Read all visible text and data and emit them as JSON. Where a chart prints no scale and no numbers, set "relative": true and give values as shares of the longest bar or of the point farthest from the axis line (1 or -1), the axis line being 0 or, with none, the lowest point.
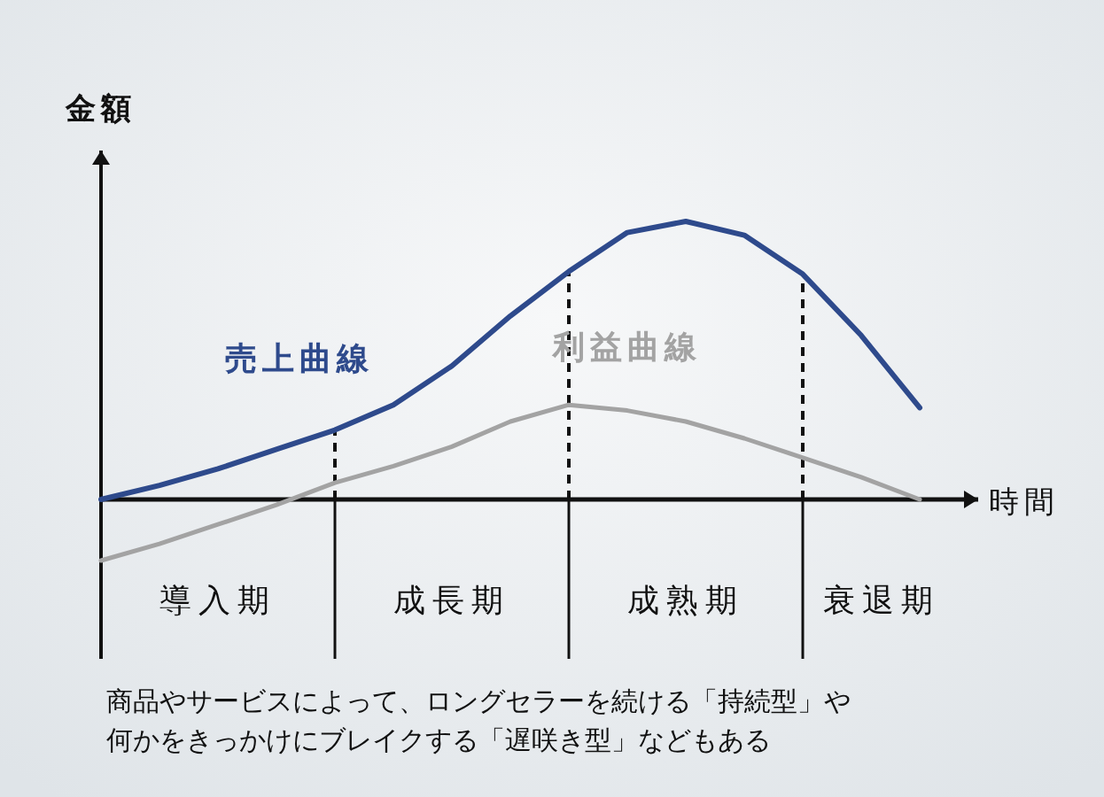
{
  "chart_data": {
    "type": "line",
    "relative": true,
    "ylabel": "金額",
    "xlabel": "時間",
    "categories": [
      null,
      null,
      null,
      null,
      null,
      null,
      null,
      null,
      null,
      null,
      null,
      null,
      null,
      null,
      null,
      null
    ],
    "series": [
      {
        "name": "売上曲線",
        "color": "#2e4a8c",
        "values": [
          0,
          0.05,
          0.11,
          0.18,
          0.25,
          0.34,
          0.48,
          0.66,
          0.82,
          0.96,
          1.0,
          0.95,
          0.81,
          0.59,
          0.33,
          null
        ]
      },
      {
        "name": "利益曲線",
        "color": "#a3a3a3",
        "values": [
          -0.22,
          -0.16,
          -0.09,
          -0.02,
          0.06,
          0.12,
          0.19,
          0.28,
          0.34,
          0.32,
          0.28,
          0.22,
          0.15,
          0.08,
          0,
          null
        ]
      }
    ],
    "annotations": [
      "導入期",
      "成長期",
      "成熟期",
      "衰退期",
      "商品やサービスによって、ロングセラーを続ける「持続型」や",
      "何かをきっかけにブレイクする「遅咲き型」などもある"
    ],
    "marker": "none",
    "line_style": "solid"
  }
}
